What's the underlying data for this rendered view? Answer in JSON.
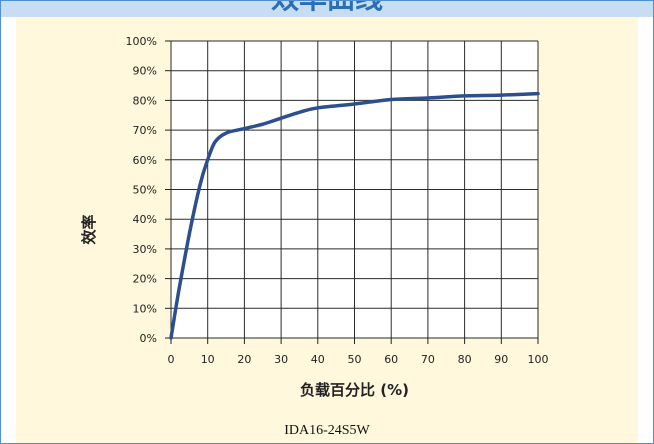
{
  "header": {
    "title": "效率曲线"
  },
  "caption": "IDA16-24S5W",
  "colors": {
    "header_bg": "#c7ddf3",
    "content_bg": "#fff8dc",
    "line": "#2c4f8e",
    "grid": "#2a2a2a",
    "border": "#4f8fd3"
  },
  "chart_data": {
    "type": "line",
    "title": "",
    "xlabel": "负载百分比 (%)",
    "ylabel": "效率",
    "xlim": [
      0,
      100
    ],
    "ylim": [
      0,
      100
    ],
    "x_ticks": [
      0,
      10,
      20,
      30,
      40,
      50,
      60,
      70,
      80,
      90,
      100
    ],
    "y_ticks": [
      0,
      10,
      20,
      30,
      40,
      50,
      60,
      70,
      80,
      90,
      100
    ],
    "x_tick_labels": [
      "0",
      "10",
      "20",
      "30",
      "40",
      "50",
      "60",
      "70",
      "80",
      "90",
      "100"
    ],
    "y_tick_labels": [
      "0%",
      "10%",
      "20%",
      "30%",
      "40%",
      "50%",
      "60%",
      "70%",
      "80%",
      "90%",
      "100%"
    ],
    "grid": true,
    "series": [
      {
        "x": [
          0,
          2,
          5,
          8,
          10,
          12,
          15,
          20,
          25,
          30,
          35,
          40,
          50,
          60,
          70,
          80,
          90,
          100
        ],
        "values": [
          0,
          15,
          35,
          52,
          60,
          66,
          69,
          70.5,
          72,
          74,
          76,
          77.5,
          78.8,
          80.3,
          80.8,
          81.5,
          81.8,
          82.3
        ]
      }
    ]
  }
}
